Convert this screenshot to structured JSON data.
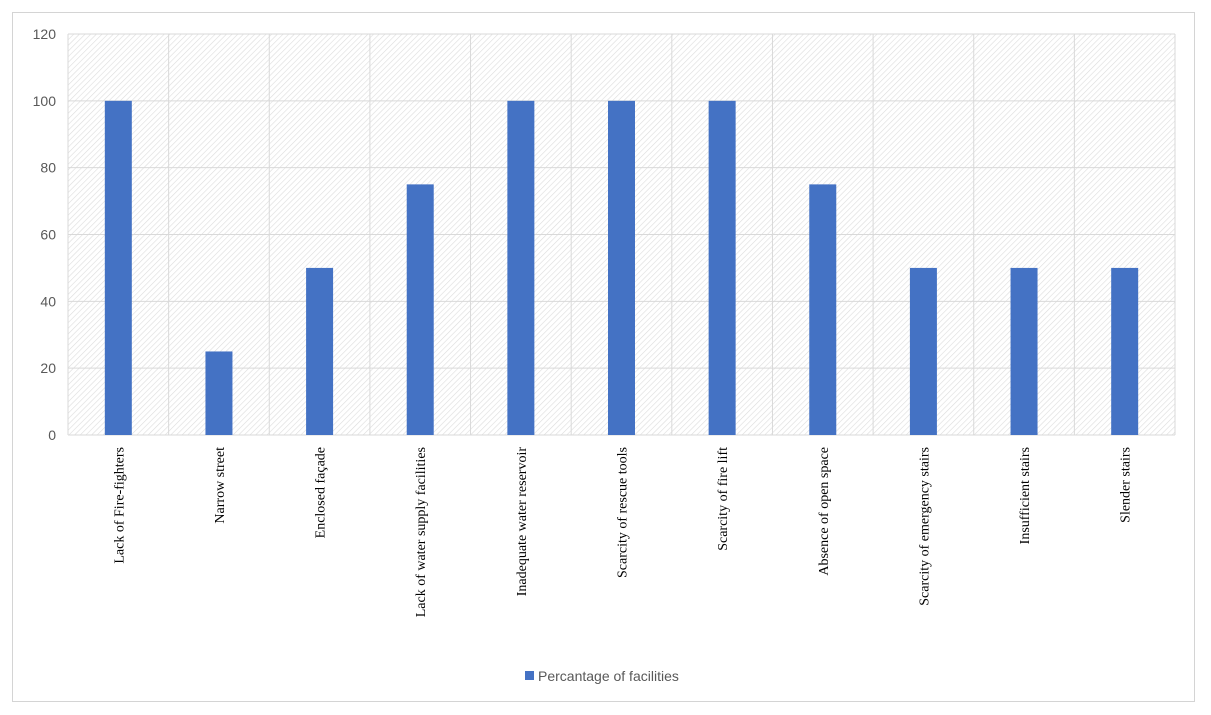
{
  "chart_data": {
    "type": "bar",
    "title": "",
    "xlabel": "",
    "ylabel": "",
    "ylim": [
      0,
      120
    ],
    "yticks": [
      0,
      20,
      40,
      60,
      80,
      100,
      120
    ],
    "grid": true,
    "legend_position": "bottom",
    "categories": [
      "Lack of Fire-fighters",
      "Narrow street",
      "Enclosed façade",
      "Lack of water supply facilities",
      "Inadequate water reservoir",
      "Scarcity of rescue tools",
      "Scarcity of fire lift",
      "Absence of open space",
      "Scarcity of emergency stairs",
      "Insufficient stairs",
      "Slender stairs"
    ],
    "series": [
      {
        "name": "Percantage of facilities",
        "color": "#4472c4",
        "values": [
          100,
          25,
          50,
          75,
          100,
          100,
          100,
          75,
          50,
          50,
          50
        ]
      }
    ]
  },
  "colors": {
    "bar": "#4472c4",
    "grid": "#d9d9d9",
    "axis_text": "#595959"
  }
}
